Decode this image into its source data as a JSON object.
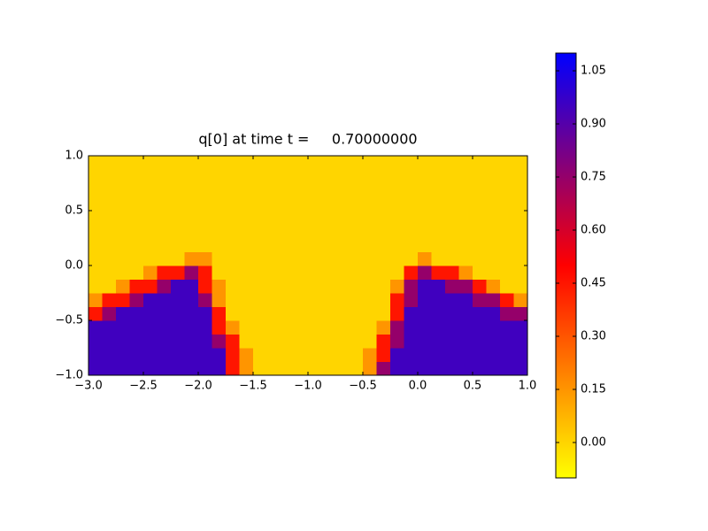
{
  "chart_data": {
    "type": "heatmap",
    "title": "q[0] at time t =     0.70000000",
    "xlim": [
      -3,
      1
    ],
    "ylim": [
      -1,
      1
    ],
    "clim": [
      -0.1,
      1.1
    ],
    "colormap": [
      "#ffff00",
      "#ff0000",
      "#0000ff"
    ],
    "xticks": [
      {
        "value": -3,
        "label": "−3.0"
      },
      {
        "value": -2.5,
        "label": "−2.5"
      },
      {
        "value": -2,
        "label": "−2.0"
      },
      {
        "value": -1.5,
        "label": "−1.5"
      },
      {
        "value": -1,
        "label": "−1.0"
      },
      {
        "value": -0.5,
        "label": "−0.5"
      },
      {
        "value": 0,
        "label": "0.0"
      },
      0.5,
      {
        "value": 1,
        "label": "1.0"
      }
    ],
    "yticks": [
      {
        "value": -1,
        "label": "−1.0"
      },
      {
        "value": -0.5,
        "label": "−0.5"
      },
      {
        "value": 0,
        "label": "0.0"
      },
      0.5,
      {
        "value": 1,
        "label": "1.0"
      }
    ],
    "cticks": [
      {
        "value": 0,
        "label": "0.00"
      },
      0.15,
      {
        "value": 0.3,
        "label": "0.30"
      },
      0.45,
      {
        "value": 0.6,
        "label": "0.60"
      },
      0.75,
      {
        "value": 0.9,
        "label": "0.90"
      },
      1.05
    ],
    "z": [
      [
        0.95,
        0.95,
        0.95,
        0.95,
        0.95,
        0.95,
        0.95,
        0.95,
        0.95,
        0.95,
        0.45,
        0.15,
        0,
        0,
        0,
        0,
        0,
        0,
        0,
        0,
        0.15,
        0.75,
        0.95,
        0.95,
        0.95,
        0.95,
        0.95,
        0.95,
        0.95,
        0.95,
        0.95,
        0.95
      ],
      [
        0.95,
        0.95,
        0.95,
        0.95,
        0.95,
        0.95,
        0.95,
        0.95,
        0.95,
        0.95,
        0.45,
        0.15,
        0,
        0,
        0,
        0,
        0,
        0,
        0,
        0,
        0.15,
        0.45,
        0.95,
        0.95,
        0.95,
        0.95,
        0.95,
        0.95,
        0.95,
        0.95,
        0.95,
        0.95
      ],
      [
        0.95,
        0.95,
        0.95,
        0.95,
        0.95,
        0.95,
        0.95,
        0.95,
        0.95,
        0.75,
        0.45,
        0,
        0,
        0,
        0,
        0,
        0,
        0,
        0,
        0,
        0,
        0.45,
        0.75,
        0.95,
        0.95,
        0.95,
        0.95,
        0.95,
        0.95,
        0.95,
        0.95,
        0.95
      ],
      [
        0.95,
        0.95,
        0.95,
        0.95,
        0.95,
        0.95,
        0.95,
        0.95,
        0.95,
        0.45,
        0.15,
        0,
        0,
        0,
        0,
        0,
        0,
        0,
        0,
        0,
        0,
        0.15,
        0.75,
        0.95,
        0.95,
        0.95,
        0.95,
        0.95,
        0.95,
        0.95,
        0.95,
        0.95
      ],
      [
        0.45,
        0.75,
        0.95,
        0.95,
        0.95,
        0.95,
        0.95,
        0.95,
        0.95,
        0.45,
        0,
        0,
        0,
        0,
        0,
        0,
        0,
        0,
        0,
        0,
        0,
        0,
        0.45,
        0.95,
        0.95,
        0.95,
        0.95,
        0.95,
        0.95,
        0.95,
        0.75,
        0.75
      ],
      [
        0.15,
        0.45,
        0.45,
        0.75,
        0.95,
        0.95,
        0.95,
        0.95,
        0.75,
        0.15,
        0,
        0,
        0,
        0,
        0,
        0,
        0,
        0,
        0,
        0,
        0,
        0,
        0.45,
        0.75,
        0.95,
        0.95,
        0.95,
        0.95,
        0.75,
        0.75,
        0.45,
        0.15
      ],
      [
        0,
        0,
        0.15,
        0.45,
        0.45,
        0.75,
        0.95,
        0.95,
        0.45,
        0.15,
        0,
        0,
        0,
        0,
        0,
        0,
        0,
        0,
        0,
        0,
        0,
        0,
        0.15,
        0.75,
        0.95,
        0.95,
        0.75,
        0.75,
        0.45,
        0.15,
        0,
        0
      ],
      [
        0,
        0,
        0,
        0,
        0.15,
        0.45,
        0.45,
        0.75,
        0.45,
        0,
        0,
        0,
        0,
        0,
        0,
        0,
        0,
        0,
        0,
        0,
        0,
        0,
        0,
        0.45,
        0.75,
        0.45,
        0.45,
        0.15,
        0,
        0,
        0,
        0
      ],
      [
        0,
        0,
        0,
        0,
        0,
        0,
        0,
        0.15,
        0.15,
        0,
        0,
        0,
        0,
        0,
        0,
        0,
        0,
        0,
        0,
        0,
        0,
        0,
        0,
        0,
        0.15,
        0,
        0,
        0,
        0,
        0,
        0,
        0
      ],
      [
        0,
        0,
        0,
        0,
        0,
        0,
        0,
        0,
        0,
        0,
        0,
        0,
        0,
        0,
        0,
        0,
        0,
        0,
        0,
        0,
        0,
        0,
        0,
        0,
        0,
        0,
        0,
        0,
        0,
        0,
        0,
        0
      ],
      [
        0,
        0,
        0,
        0,
        0,
        0,
        0,
        0,
        0,
        0,
        0,
        0,
        0,
        0,
        0,
        0,
        0,
        0,
        0,
        0,
        0,
        0,
        0,
        0,
        0,
        0,
        0,
        0,
        0,
        0,
        0,
        0
      ],
      [
        0,
        0,
        0,
        0,
        0,
        0,
        0,
        0,
        0,
        0,
        0,
        0,
        0,
        0,
        0,
        0,
        0,
        0,
        0,
        0,
        0,
        0,
        0,
        0,
        0,
        0,
        0,
        0,
        0,
        0,
        0,
        0
      ],
      [
        0,
        0,
        0,
        0,
        0,
        0,
        0,
        0,
        0,
        0,
        0,
        0,
        0,
        0,
        0,
        0,
        0,
        0,
        0,
        0,
        0,
        0,
        0,
        0,
        0,
        0,
        0,
        0,
        0,
        0,
        0,
        0
      ],
      [
        0,
        0,
        0,
        0,
        0,
        0,
        0,
        0,
        0,
        0,
        0,
        0,
        0,
        0,
        0,
        0,
        0,
        0,
        0,
        0,
        0,
        0,
        0,
        0,
        0,
        0,
        0,
        0,
        0,
        0,
        0,
        0
      ],
      [
        0,
        0,
        0,
        0,
        0,
        0,
        0,
        0,
        0,
        0,
        0,
        0,
        0,
        0,
        0,
        0,
        0,
        0,
        0,
        0,
        0,
        0,
        0,
        0,
        0,
        0,
        0,
        0,
        0,
        0,
        0,
        0
      ],
      [
        0,
        0,
        0,
        0,
        0,
        0,
        0,
        0,
        0,
        0,
        0,
        0,
        0,
        0,
        0,
        0,
        0,
        0,
        0,
        0,
        0,
        0,
        0,
        0,
        0,
        0,
        0,
        0,
        0,
        0,
        0,
        0
      ]
    ]
  }
}
